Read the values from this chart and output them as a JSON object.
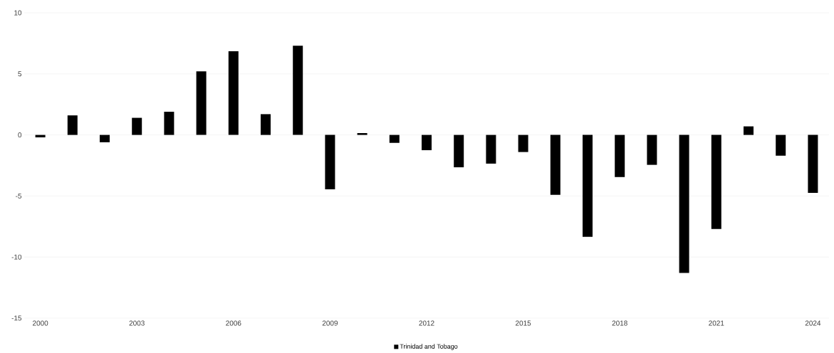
{
  "chart_data": {
    "type": "bar",
    "categories": [
      "2000",
      null,
      null,
      "2003",
      null,
      null,
      "2006",
      null,
      null,
      "2009",
      null,
      null,
      "2012",
      null,
      null,
      "2015",
      null,
      null,
      "2018",
      null,
      null,
      "2021",
      null,
      null,
      "2024"
    ],
    "series": [
      {
        "name": "Trinidad and Tobago",
        "color": "#000000",
        "values": [
          -0.2,
          1.6,
          -0.6,
          1.4,
          1.9,
          5.2,
          6.85,
          1.7,
          7.3,
          -4.45,
          0.15,
          -0.65,
          -1.25,
          -2.65,
          -2.35,
          -1.4,
          -4.9,
          -8.35,
          -3.45,
          -2.45,
          -11.3,
          -7.7,
          0.7,
          -1.7,
          -4.75
        ]
      }
    ],
    "ylim": [
      -15,
      10
    ],
    "yticks": [
      -15,
      -10,
      -5,
      0,
      5,
      10
    ],
    "grid": "y",
    "legend": "bottom"
  }
}
